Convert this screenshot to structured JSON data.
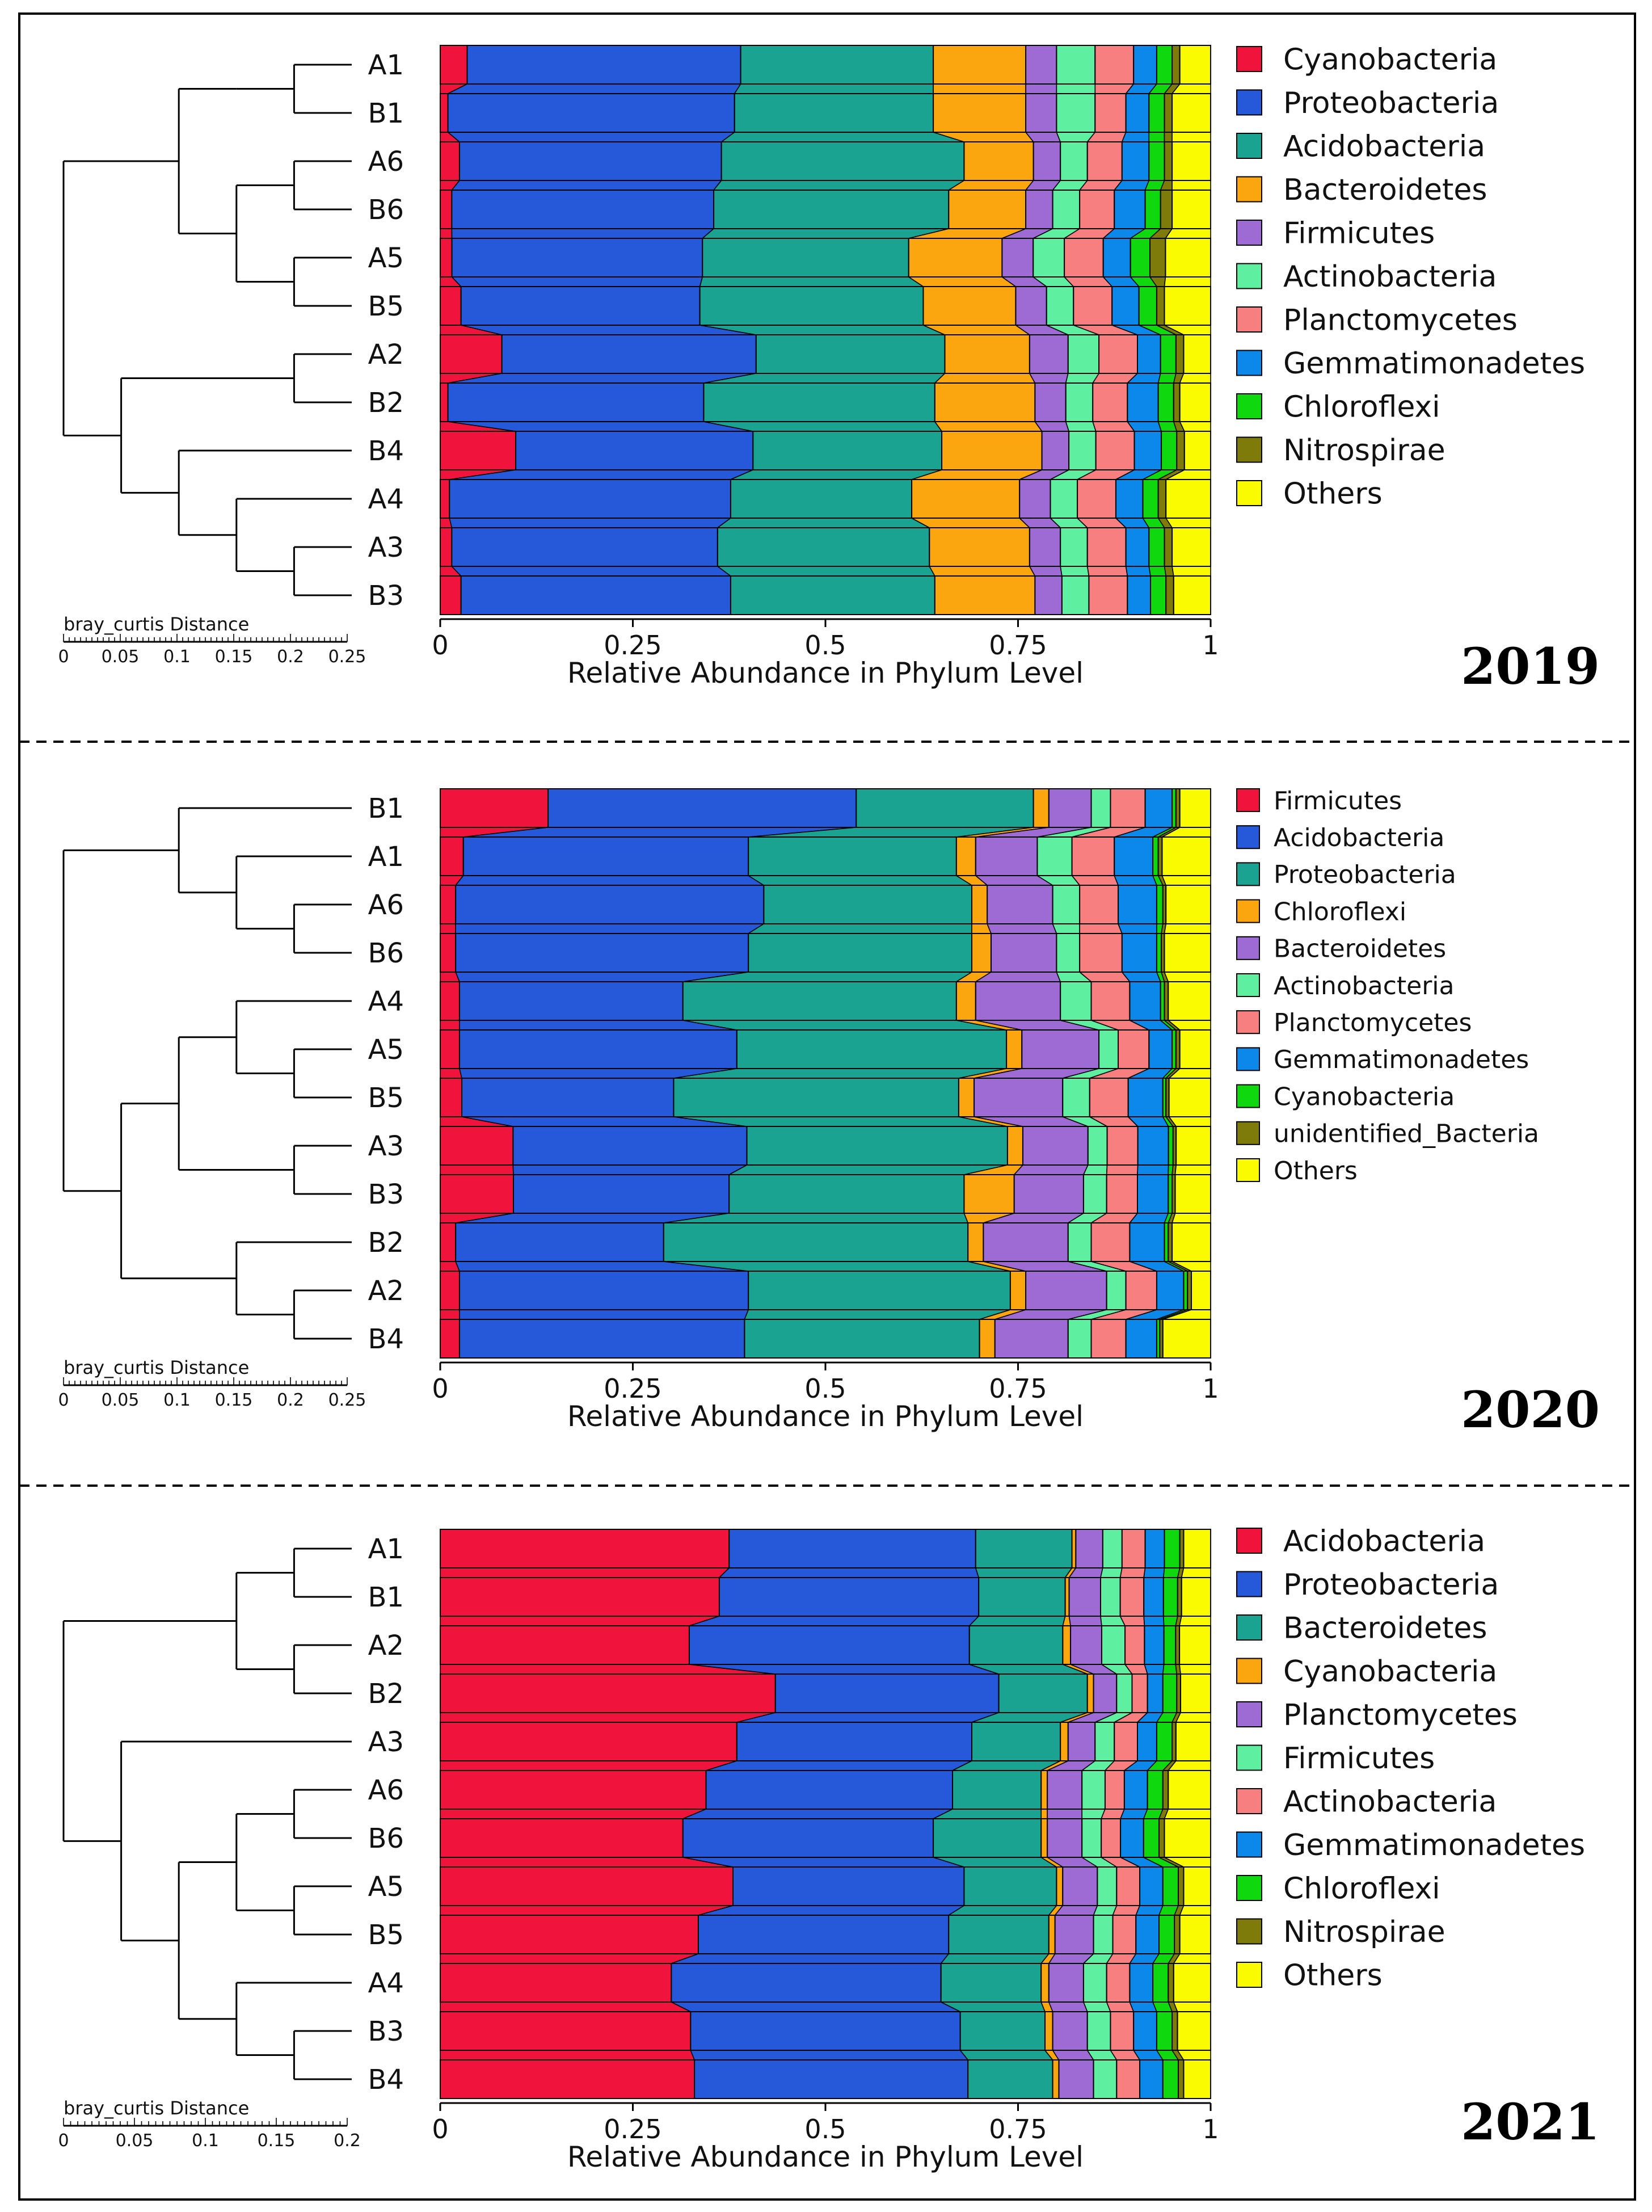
{
  "chart_data": [
    {
      "type": "bar",
      "orientation": "horizontal",
      "stacked": true,
      "year": "2019",
      "xlabel": "Relative Abundance in Phylum Level",
      "xlim": [
        0,
        1
      ],
      "xticks": [
        "0",
        "0.25",
        "0.5",
        "0.75",
        "1"
      ],
      "dendrogram_title": "bray_curtis Distance",
      "dendrogram_ticks": [
        "0",
        "0.05",
        "0.1",
        "0.15",
        "0.2",
        "0.25"
      ],
      "dendrogram_max": 0.25,
      "categories": [
        "A1",
        "B1",
        "A6",
        "B6",
        "A5",
        "B5",
        "A2",
        "B2",
        "B4",
        "A4",
        "A3",
        "B3"
      ],
      "tree": [
        [
          [
            [
              "A1",
              "B1"
            ]
          ],
          [
            [
              "A6",
              "B6"
            ],
            [
              "A5",
              "B5"
            ]
          ]
        ],
        [
          [
            "A2",
            "B2"
          ],
          [
            "B4",
            [
              "A4",
              [
                "A3",
                "B3"
              ]
            ]
          ]
        ]
      ],
      "series": [
        {
          "name": "Cyanobacteria",
          "color": "#f0143c",
          "values": [
            0.035,
            0.01,
            0.025,
            0.015,
            0.015,
            0.027,
            0.08,
            0.01,
            0.098,
            0.012,
            0.015,
            0.027
          ]
        },
        {
          "name": "Proteobacteria",
          "color": "#2659d9",
          "values": [
            0.355,
            0.372,
            0.34,
            0.34,
            0.322,
            0.31,
            0.33,
            0.332,
            0.308,
            0.365,
            0.345,
            0.35
          ]
        },
        {
          "name": "Acidobacteria",
          "color": "#1aa391",
          "values": [
            0.25,
            0.258,
            0.315,
            0.305,
            0.265,
            0.29,
            0.245,
            0.3,
            0.245,
            0.235,
            0.275,
            0.265
          ]
        },
        {
          "name": "Bacteroidetes",
          "color": "#fba50f",
          "values": [
            0.12,
            0.12,
            0.09,
            0.1,
            0.12,
            0.12,
            0.11,
            0.13,
            0.13,
            0.14,
            0.13,
            0.13
          ]
        },
        {
          "name": "Firmicutes",
          "color": "#9e6bd4",
          "values": [
            0.04,
            0.04,
            0.035,
            0.035,
            0.04,
            0.04,
            0.05,
            0.04,
            0.035,
            0.04,
            0.04,
            0.035
          ]
        },
        {
          "name": "Actinobacteria",
          "color": "#5ef0a0",
          "values": [
            0.05,
            0.05,
            0.035,
            0.035,
            0.04,
            0.035,
            0.04,
            0.035,
            0.035,
            0.035,
            0.035,
            0.035
          ]
        },
        {
          "name": "Planctomycetes",
          "color": "#f77f7f",
          "values": [
            0.05,
            0.04,
            0.045,
            0.045,
            0.05,
            0.05,
            0.05,
            0.045,
            0.05,
            0.05,
            0.05,
            0.05
          ]
        },
        {
          "name": "Gemmatimonadetes",
          "color": "#0c87ea",
          "values": [
            0.03,
            0.03,
            0.035,
            0.04,
            0.035,
            0.035,
            0.03,
            0.04,
            0.035,
            0.035,
            0.03,
            0.03
          ]
        },
        {
          "name": "Chloroflexi",
          "color": "#10d80e",
          "values": [
            0.02,
            0.02,
            0.02,
            0.02,
            0.025,
            0.023,
            0.02,
            0.02,
            0.02,
            0.02,
            0.02,
            0.02
          ]
        },
        {
          "name": "Nitrospirae",
          "color": "#7f7b0b",
          "values": [
            0.01,
            0.01,
            0.01,
            0.015,
            0.02,
            0.01,
            0.01,
            0.008,
            0.01,
            0.01,
            0.01,
            0.01
          ]
        },
        {
          "name": "Others",
          "color": "#fbfb00",
          "values": [
            0.04,
            0.05,
            0.05,
            0.05,
            0.058,
            0.06,
            0.035,
            0.04,
            0.034,
            0.058,
            0.05,
            0.048
          ]
        }
      ]
    },
    {
      "type": "bar",
      "orientation": "horizontal",
      "stacked": true,
      "year": "2020",
      "xlabel": "Relative Abundance in Phylum Level",
      "xlim": [
        0,
        1
      ],
      "xticks": [
        "0",
        "0.25",
        "0.5",
        "0.75",
        "1"
      ],
      "dendrogram_title": "bray_curtis Distance",
      "dendrogram_ticks": [
        "0",
        "0.05",
        "0.1",
        "0.15",
        "0.2",
        "0.25"
      ],
      "dendrogram_max": 0.25,
      "categories": [
        "B1",
        "A1",
        "A6",
        "B6",
        "A4",
        "A5",
        "B5",
        "A3",
        "B3",
        "B2",
        "A2",
        "B4"
      ],
      "tree": [
        [
          "B1",
          [
            "A1",
            [
              "A6",
              "B6"
            ]
          ]
        ],
        [
          [
            [
              "A4",
              [
                "A5",
                "B5"
              ]
            ],
            [
              "A3",
              "B3"
            ]
          ],
          [
            "B2",
            [
              "A2",
              "B4"
            ]
          ]
        ]
      ],
      "series": [
        {
          "name": "Firmicutes",
          "color": "#f0143c",
          "values": [
            0.14,
            0.03,
            0.02,
            0.02,
            0.025,
            0.025,
            0.028,
            0.095,
            0.095,
            0.02,
            0.025,
            0.025
          ]
        },
        {
          "name": "Acidobacteria",
          "color": "#2659d9",
          "values": [
            0.4,
            0.37,
            0.4,
            0.38,
            0.29,
            0.36,
            0.275,
            0.305,
            0.28,
            0.27,
            0.375,
            0.37
          ]
        },
        {
          "name": "Proteobacteria",
          "color": "#1aa391",
          "values": [
            0.23,
            0.27,
            0.27,
            0.29,
            0.355,
            0.35,
            0.37,
            0.34,
            0.305,
            0.395,
            0.34,
            0.305
          ]
        },
        {
          "name": "Chloroflexi",
          "color": "#fba50f",
          "values": [
            0.02,
            0.025,
            0.02,
            0.025,
            0.025,
            0.02,
            0.02,
            0.02,
            0.065,
            0.02,
            0.02,
            0.02
          ]
        },
        {
          "name": "Bacteroidetes",
          "color": "#9e6bd4",
          "values": [
            0.055,
            0.08,
            0.085,
            0.085,
            0.11,
            0.1,
            0.115,
            0.085,
            0.09,
            0.11,
            0.105,
            0.095
          ]
        },
        {
          "name": "Actinobacteria",
          "color": "#5ef0a0",
          "values": [
            0.025,
            0.045,
            0.035,
            0.03,
            0.04,
            0.025,
            0.035,
            0.025,
            0.03,
            0.03,
            0.025,
            0.03
          ]
        },
        {
          "name": "Planctomycetes",
          "color": "#f77f7f",
          "values": [
            0.045,
            0.055,
            0.05,
            0.055,
            0.05,
            0.04,
            0.05,
            0.04,
            0.04,
            0.05,
            0.04,
            0.045
          ]
        },
        {
          "name": "Gemmatimonadetes",
          "color": "#0c87ea",
          "values": [
            0.035,
            0.05,
            0.05,
            0.045,
            0.04,
            0.03,
            0.045,
            0.04,
            0.04,
            0.045,
            0.035,
            0.04
          ]
        },
        {
          "name": "Cyanobacteria",
          "color": "#10d80e",
          "values": [
            0.005,
            0.007,
            0.008,
            0.006,
            0.005,
            0.005,
            0.004,
            0.006,
            0.005,
            0.005,
            0.005,
            0.004
          ]
        },
        {
          "name": "unidentified_Bacteria",
          "color": "#7f7b0b",
          "values": [
            0.005,
            0.005,
            0.004,
            0.004,
            0.005,
            0.005,
            0.004,
            0.004,
            0.004,
            0.005,
            0.005,
            0.004
          ]
        },
        {
          "name": "Others",
          "color": "#fbfb00",
          "values": [
            0.04,
            0.063,
            0.058,
            0.06,
            0.055,
            0.04,
            0.054,
            0.045,
            0.046,
            0.05,
            0.025,
            0.062
          ]
        }
      ]
    },
    {
      "type": "bar",
      "orientation": "horizontal",
      "stacked": true,
      "year": "2021",
      "xlabel": "Relative Abundance in Phylum Level",
      "xlim": [
        0,
        1
      ],
      "xticks": [
        "0",
        "0.25",
        "0.5",
        "0.75",
        "1"
      ],
      "dendrogram_title": "bray_curtis Distance",
      "dendrogram_ticks": [
        "0",
        "0.05",
        "0.1",
        "0.15",
        "0.2"
      ],
      "dendrogram_max": 0.2,
      "categories": [
        "A1",
        "B1",
        "A2",
        "B2",
        "A3",
        "A6",
        "B6",
        "A5",
        "B5",
        "A4",
        "B3",
        "B4"
      ],
      "tree": [
        [
          [
            "A1",
            "B1"
          ],
          [
            "A2",
            "B2"
          ]
        ],
        [
          "A3",
          [
            [
              [
                "A6",
                "B6"
              ],
              [
                "A5",
                "B5"
              ]
            ],
            [
              "A4",
              [
                "B3",
                "B4"
              ]
            ]
          ]
        ]
      ],
      "series": [
        {
          "name": "Acidobacteria",
          "color": "#f0143c",
          "values": [
            0.375,
            0.355,
            0.32,
            0.435,
            0.385,
            0.345,
            0.315,
            0.38,
            0.335,
            0.3,
            0.325,
            0.33
          ]
        },
        {
          "name": "Proteobacteria",
          "color": "#2659d9",
          "values": [
            0.32,
            0.33,
            0.36,
            0.29,
            0.305,
            0.32,
            0.325,
            0.3,
            0.325,
            0.35,
            0.35,
            0.355
          ]
        },
        {
          "name": "Bacteroidetes",
          "color": "#1aa391",
          "values": [
            0.125,
            0.11,
            0.12,
            0.115,
            0.115,
            0.115,
            0.14,
            0.12,
            0.13,
            0.13,
            0.11,
            0.11
          ]
        },
        {
          "name": "Cyanobacteria",
          "color": "#fba50f",
          "values": [
            0.005,
            0.005,
            0.01,
            0.008,
            0.01,
            0.008,
            0.008,
            0.008,
            0.008,
            0.01,
            0.01,
            0.008
          ]
        },
        {
          "name": "Planctomycetes",
          "color": "#9e6bd4",
          "values": [
            0.035,
            0.04,
            0.04,
            0.03,
            0.035,
            0.045,
            0.045,
            0.045,
            0.05,
            0.045,
            0.045,
            0.045
          ]
        },
        {
          "name": "Firmicutes",
          "color": "#5ef0a0",
          "values": [
            0.025,
            0.025,
            0.03,
            0.02,
            0.025,
            0.03,
            0.025,
            0.025,
            0.025,
            0.03,
            0.03,
            0.03
          ]
        },
        {
          "name": "Actinobacteria",
          "color": "#f77f7f",
          "values": [
            0.03,
            0.03,
            0.025,
            0.02,
            0.03,
            0.025,
            0.025,
            0.03,
            0.03,
            0.03,
            0.03,
            0.03
          ]
        },
        {
          "name": "Gemmatimonadetes",
          "color": "#0c87ea",
          "values": [
            0.025,
            0.025,
            0.025,
            0.02,
            0.025,
            0.03,
            0.03,
            0.03,
            0.03,
            0.03,
            0.03,
            0.03
          ]
        },
        {
          "name": "Chloroflexi",
          "color": "#10d80e",
          "values": [
            0.02,
            0.018,
            0.015,
            0.018,
            0.02,
            0.02,
            0.02,
            0.02,
            0.02,
            0.02,
            0.02,
            0.02
          ]
        },
        {
          "name": "Nitrospirae",
          "color": "#7f7b0b",
          "values": [
            0.005,
            0.005,
            0.005,
            0.005,
            0.005,
            0.007,
            0.007,
            0.007,
            0.007,
            0.007,
            0.007,
            0.007
          ]
        },
        {
          "name": "Others",
          "color": "#fbfb00",
          "values": [
            0.035,
            0.037,
            0.04,
            0.039,
            0.045,
            0.055,
            0.06,
            0.035,
            0.04,
            0.048,
            0.043,
            0.035
          ]
        }
      ]
    }
  ]
}
